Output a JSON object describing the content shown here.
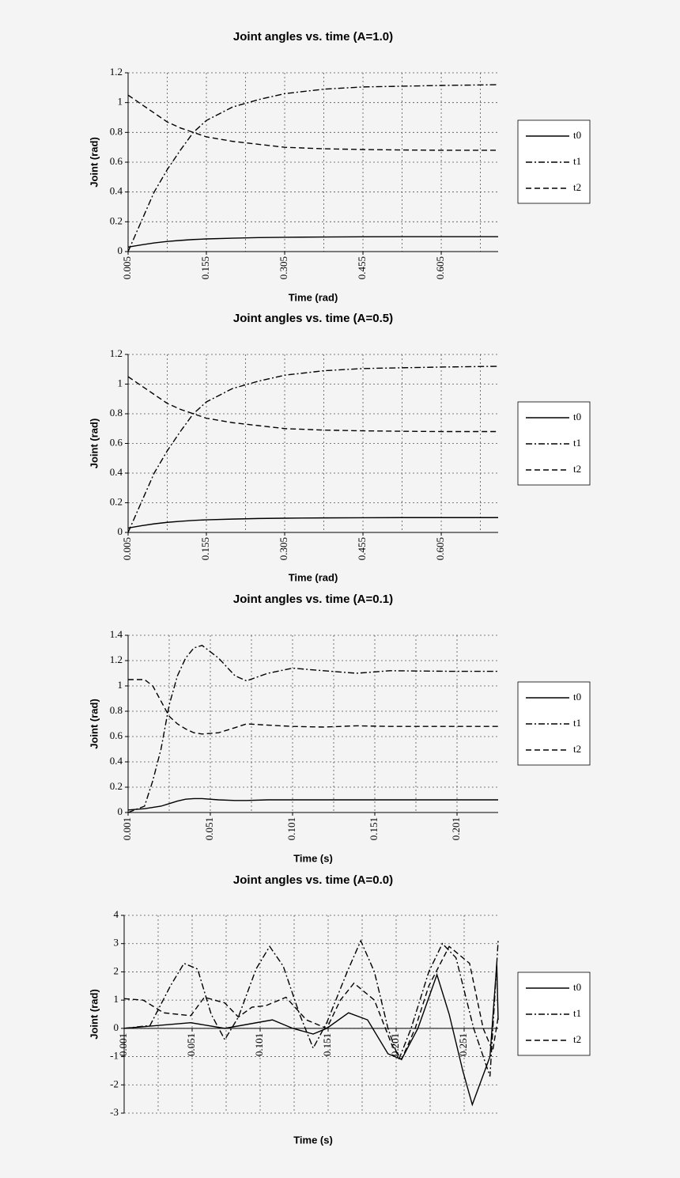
{
  "chart_data": [
    {
      "type": "line",
      "title": "Joint angles vs. time (A=1.0)",
      "xlabel": "Time (rad)",
      "ylabel": "Joint (rad)",
      "x": [
        0.005,
        0.03,
        0.055,
        0.08,
        0.105,
        0.13,
        0.155,
        0.205,
        0.255,
        0.305,
        0.38,
        0.455,
        0.53,
        0.605,
        0.714
      ],
      "xlim": [
        0.005,
        0.714
      ],
      "xticks": [
        0.005,
        0.155,
        0.305,
        0.455,
        0.605
      ],
      "xgrid": [
        0.005,
        0.08,
        0.155,
        0.23,
        0.305,
        0.38,
        0.455,
        0.53,
        0.605,
        0.68
      ],
      "ylim": [
        0,
        1.2
      ],
      "yticks": [
        0,
        0.2,
        0.4,
        0.6,
        0.8,
        1,
        1.2
      ],
      "grid": true,
      "series": [
        {
          "name": "t0",
          "color": "#000000",
          "dash": "solid",
          "values": [
            0.03,
            0.045,
            0.058,
            0.068,
            0.075,
            0.081,
            0.085,
            0.09,
            0.094,
            0.096,
            0.098,
            0.099,
            0.1,
            0.1,
            0.1
          ]
        },
        {
          "name": "t1",
          "color": "#000000",
          "dash": "dashdot",
          "values": [
            0,
            0.2,
            0.4,
            0.55,
            0.68,
            0.8,
            0.88,
            0.97,
            1.02,
            1.06,
            1.09,
            1.105,
            1.11,
            1.115,
            1.12
          ]
        },
        {
          "name": "t2",
          "color": "#000000",
          "dash": "dashed",
          "values": [
            1.05,
            0.99,
            0.93,
            0.87,
            0.83,
            0.8,
            0.77,
            0.74,
            0.72,
            0.7,
            0.69,
            0.685,
            0.682,
            0.68,
            0.68
          ]
        }
      ]
    },
    {
      "type": "line",
      "title": "Joint angles vs. time (A=0.5)",
      "xlabel": "Time (rad)",
      "ylabel": "Joint (rad)",
      "x": [
        0.005,
        0.03,
        0.055,
        0.08,
        0.105,
        0.13,
        0.155,
        0.205,
        0.255,
        0.305,
        0.38,
        0.455,
        0.53,
        0.605,
        0.714
      ],
      "xlim": [
        0.005,
        0.714
      ],
      "xticks": [
        0.005,
        0.155,
        0.305,
        0.455,
        0.605
      ],
      "xgrid": [
        0.005,
        0.08,
        0.155,
        0.23,
        0.305,
        0.38,
        0.455,
        0.53,
        0.605,
        0.68
      ],
      "ylim": [
        0,
        1.2
      ],
      "yticks": [
        0,
        0.2,
        0.4,
        0.6,
        0.8,
        1,
        1.2
      ],
      "grid": true,
      "series": [
        {
          "name": "t0",
          "color": "#000000",
          "dash": "solid",
          "values": [
            0.03,
            0.045,
            0.058,
            0.068,
            0.075,
            0.081,
            0.085,
            0.09,
            0.094,
            0.096,
            0.098,
            0.099,
            0.1,
            0.1,
            0.1
          ]
        },
        {
          "name": "t1",
          "color": "#000000",
          "dash": "dashdot",
          "values": [
            0,
            0.2,
            0.4,
            0.55,
            0.68,
            0.8,
            0.88,
            0.97,
            1.02,
            1.06,
            1.09,
            1.105,
            1.11,
            1.115,
            1.12
          ]
        },
        {
          "name": "t2",
          "color": "#000000",
          "dash": "dashed",
          "values": [
            1.05,
            0.99,
            0.93,
            0.87,
            0.83,
            0.8,
            0.77,
            0.74,
            0.72,
            0.7,
            0.69,
            0.685,
            0.682,
            0.68,
            0.68
          ]
        }
      ]
    },
    {
      "type": "line",
      "title": "Joint angles vs. time (A=0.1)",
      "xlabel": "Time (s)",
      "ylabel": "Joint (rad)",
      "x": [
        0.001,
        0.011,
        0.016,
        0.021,
        0.026,
        0.031,
        0.036,
        0.041,
        0.046,
        0.056,
        0.066,
        0.073,
        0.086,
        0.101,
        0.12,
        0.14,
        0.16,
        0.2,
        0.226
      ],
      "xlim": [
        0.001,
        0.226
      ],
      "xticks": [
        0.001,
        0.051,
        0.101,
        0.151,
        0.201
      ],
      "xgrid": [
        0.001,
        0.026,
        0.051,
        0.076,
        0.101,
        0.126,
        0.151,
        0.176,
        0.201
      ],
      "ylim": [
        0,
        1.4
      ],
      "yticks": [
        0,
        0.2,
        0.4,
        0.6,
        0.8,
        1,
        1.2,
        1.4
      ],
      "grid": true,
      "series": [
        {
          "name": "t0",
          "color": "#000000",
          "dash": "solid",
          "values": [
            0.02,
            0.03,
            0.04,
            0.05,
            0.07,
            0.09,
            0.105,
            0.11,
            0.11,
            0.1,
            0.095,
            0.095,
            0.1,
            0.1,
            0.1,
            0.1,
            0.1,
            0.1,
            0.1
          ]
        },
        {
          "name": "t1",
          "color": "#000000",
          "dash": "dashdot",
          "values": [
            0,
            0.05,
            0.25,
            0.5,
            0.85,
            1.08,
            1.22,
            1.3,
            1.32,
            1.22,
            1.08,
            1.04,
            1.1,
            1.14,
            1.12,
            1.1,
            1.12,
            1.115,
            1.115
          ]
        },
        {
          "name": "t2",
          "color": "#000000",
          "dash": "dashed",
          "values": [
            1.05,
            1.05,
            1,
            0.88,
            0.76,
            0.7,
            0.66,
            0.63,
            0.62,
            0.63,
            0.67,
            0.7,
            0.69,
            0.68,
            0.675,
            0.685,
            0.68,
            0.68,
            0.68
          ]
        }
      ]
    },
    {
      "type": "line",
      "title": "Joint angles vs. time (A=0.0)",
      "xlabel": "Time (s)",
      "ylabel": "Joint (rad)",
      "xlim": [
        0.001,
        0.276
      ],
      "xticks": [
        0.001,
        0.051,
        0.101,
        0.151,
        0.201,
        0.251
      ],
      "xgrid": [
        0.001,
        0.026,
        0.051,
        0.076,
        0.101,
        0.126,
        0.151,
        0.176,
        0.201,
        0.226,
        0.251
      ],
      "ylim": [
        -3,
        4
      ],
      "yticks": [
        -3,
        -2,
        -1,
        0,
        1,
        2,
        3,
        4
      ],
      "grid": true,
      "series": [
        {
          "name": "t0",
          "color": "#000000",
          "dash": "solid",
          "x": [
            0.001,
            0.05,
            0.075,
            0.11,
            0.125,
            0.14,
            0.15,
            0.166,
            0.18,
            0.195,
            0.205,
            0.217,
            0.231,
            0.24,
            0.25,
            0.257,
            0.27,
            0.275,
            0.276
          ],
          "values": [
            0,
            0.2,
            0,
            0.3,
            0,
            -0.2,
            0,
            0.55,
            0.3,
            -0.9,
            -1.1,
            0,
            1.9,
            0.5,
            -1.5,
            -2.7,
            -1,
            2.3,
            0.3
          ]
        },
        {
          "name": "t1",
          "color": "#000000",
          "dash": "dashdot",
          "x": [
            0.001,
            0.02,
            0.035,
            0.045,
            0.055,
            0.065,
            0.075,
            0.085,
            0.098,
            0.108,
            0.118,
            0.13,
            0.14,
            0.15,
            0.165,
            0.175,
            0.185,
            0.195,
            0.203,
            0.212,
            0.225,
            0.235,
            0.245,
            0.258,
            0.27,
            0.276
          ],
          "values": [
            0,
            0.1,
            1.5,
            2.3,
            2.1,
            0.5,
            -0.4,
            0.4,
            2.1,
            2.9,
            2.2,
            0.5,
            -0.7,
            0.2,
            2,
            3.1,
            2,
            0,
            -1.1,
            0,
            2,
            3,
            2.5,
            0,
            -1.7,
            3.1
          ]
        },
        {
          "name": "t2",
          "color": "#000000",
          "dash": "dashed",
          "x": [
            0.001,
            0.015,
            0.03,
            0.05,
            0.06,
            0.075,
            0.085,
            0.095,
            0.105,
            0.12,
            0.135,
            0.15,
            0.16,
            0.17,
            0.185,
            0.198,
            0.205,
            0.215,
            0.225,
            0.24,
            0.255,
            0.265,
            0.272,
            0.276
          ],
          "values": [
            1.05,
            1,
            0.55,
            0.45,
            1.1,
            0.9,
            0.4,
            0.75,
            0.8,
            1.1,
            0.3,
            0,
            1,
            1.6,
            1,
            -0.6,
            -1.1,
            0,
            1.5,
            2.9,
            2.3,
            0,
            -0.8,
            0.4
          ]
        }
      ]
    }
  ]
}
